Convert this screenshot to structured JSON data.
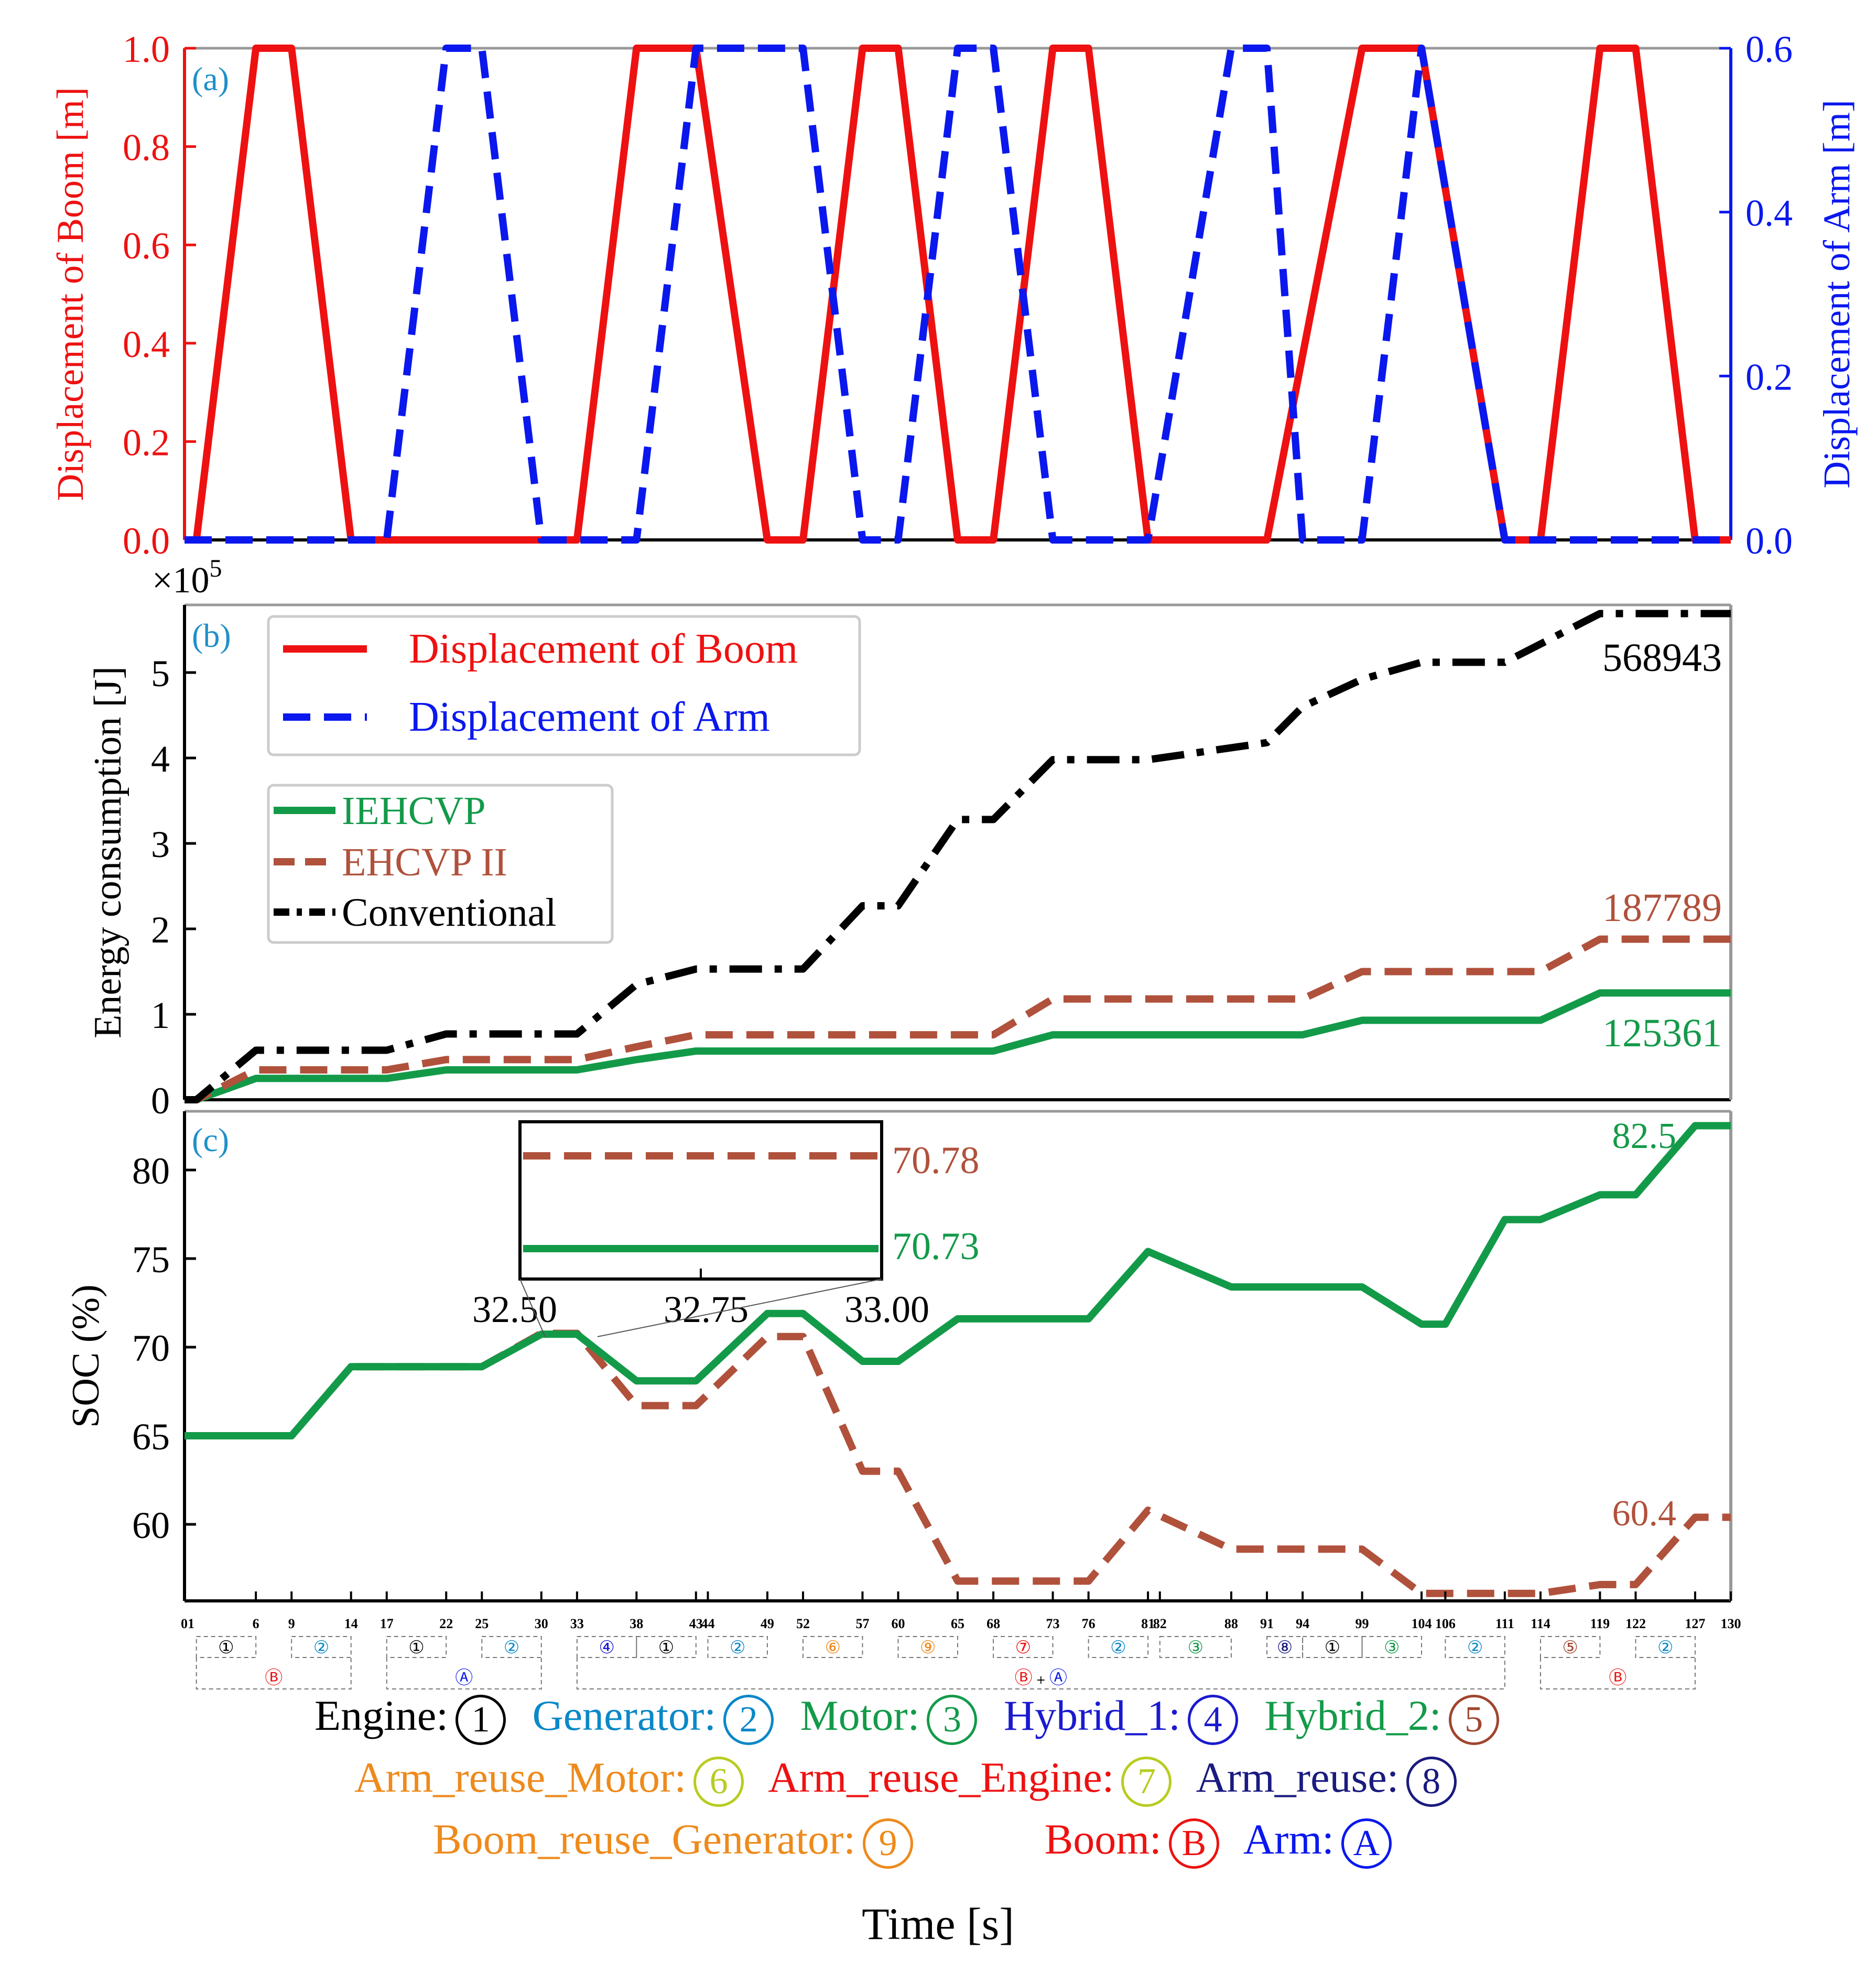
{
  "x_label": "Time [s]",
  "chart_data": [
    {
      "id": "a",
      "panel_label": "(a)",
      "type": "line",
      "ylabel_left": "Displacement of Boom [m]",
      "ylabel_right": "Displacement of Arm [m]",
      "xlim": [
        0,
        130
      ],
      "ylim_left": [
        0,
        1.0
      ],
      "ylim_right": [
        0,
        0.6
      ],
      "yticks_left": [
        "0.0",
        "0.2",
        "0.4",
        "0.6",
        "0.8",
        "1.0"
      ],
      "yticks_right": [
        "0.0",
        "0.2",
        "0.4",
        "0.6"
      ],
      "series": [
        {
          "name": "Displacement of Boom",
          "color": "#ee1111",
          "style": "solid",
          "axis": "left",
          "x": [
            0,
            1,
            6,
            9,
            14,
            33,
            38,
            43,
            49,
            52,
            57,
            60,
            65,
            68,
            73,
            76,
            81,
            91,
            99,
            104,
            111,
            114,
            119,
            122,
            127,
            130
          ],
          "y": [
            0,
            0,
            1,
            1,
            0,
            0,
            1,
            1,
            0,
            0,
            1,
            1,
            0,
            0,
            1,
            1,
            0,
            0,
            1,
            1,
            0,
            0,
            1,
            1,
            0,
            0
          ]
        },
        {
          "name": "Displacement of Arm",
          "color": "#0a18ee",
          "style": "dashed",
          "axis": "right",
          "x": [
            0,
            17,
            22,
            25,
            30,
            38,
            43,
            52,
            57,
            60,
            65,
            68,
            73,
            81,
            88,
            91,
            94,
            99,
            104,
            111,
            130
          ],
          "y": [
            0,
            0,
            0.6,
            0.6,
            0,
            0,
            0.6,
            0.6,
            0,
            0,
            0.6,
            0.6,
            0,
            0,
            0.6,
            0.6,
            0,
            0,
            0.6,
            0,
            0
          ]
        }
      ]
    },
    {
      "id": "b",
      "panel_label": "(b)",
      "type": "line",
      "ylabel": "Energy consumption [J]",
      "scale_label": "×10",
      "scale_exponent": "5",
      "xlim": [
        0,
        130
      ],
      "ylim": [
        0,
        5.8
      ],
      "yticks": [
        "0",
        "1",
        "2",
        "3",
        "4",
        "5"
      ],
      "legend_top": [
        "Displacement of Boom",
        "Displacement of Arm"
      ],
      "series": [
        {
          "name": "IEHCVP",
          "color": "#139a49",
          "style": "solid",
          "x": [
            0,
            1,
            6,
            17,
            22,
            33,
            38,
            43,
            68,
            73,
            94,
            99,
            111,
            114,
            119,
            130
          ],
          "y": [
            0,
            0,
            0.25,
            0.25,
            0.35,
            0.35,
            0.47,
            0.57,
            0.57,
            0.76,
            0.76,
            0.93,
            0.93,
            0.93,
            1.25,
            1.25
          ]
        },
        {
          "name": "EHCVP II",
          "color": "#b0513c",
          "style": "dashed",
          "x": [
            0,
            1,
            6,
            17,
            22,
            33,
            38,
            43,
            68,
            73,
            94,
            99,
            111,
            114,
            119,
            130
          ],
          "y": [
            0,
            0,
            0.35,
            0.35,
            0.47,
            0.47,
            0.62,
            0.76,
            0.76,
            1.18,
            1.18,
            1.5,
            1.5,
            1.5,
            1.88,
            1.88
          ]
        },
        {
          "name": "Conventional",
          "color": "#000000",
          "style": "dashdot",
          "x": [
            0,
            1,
            6,
            17,
            22,
            33,
            38,
            43,
            52,
            57,
            60,
            65,
            68,
            73,
            81,
            91,
            94,
            99,
            104,
            111,
            119,
            130
          ],
          "y": [
            0,
            0,
            0.58,
            0.58,
            0.77,
            0.77,
            1.35,
            1.53,
            1.53,
            2.27,
            2.27,
            3.28,
            3.28,
            3.98,
            3.98,
            4.18,
            4.6,
            4.92,
            5.12,
            5.12,
            5.69,
            5.69
          ]
        }
      ],
      "annotations": [
        "568943",
        "187789",
        "125361"
      ]
    },
    {
      "id": "c",
      "panel_label": "(c)",
      "type": "line",
      "ylabel": "SOC (%)",
      "xlim": [
        0,
        130
      ],
      "ylim": [
        55.9,
        82.9
      ],
      "yticks": [
        "60",
        "65",
        "70",
        "75",
        "80"
      ],
      "xticks": [
        "01",
        "6",
        "9",
        "14",
        "17",
        "22",
        "25",
        "30",
        "33",
        "38",
        "43",
        "44",
        "49",
        "52",
        "57",
        "60",
        "65",
        "68",
        "73",
        "76",
        "81",
        "82",
        "88",
        "91",
        "94",
        "99",
        "104",
        "106",
        "111",
        "114",
        "119",
        "122",
        "127",
        "130"
      ],
      "series": [
        {
          "name": "IEHCVP",
          "color": "#139a49",
          "style": "solid",
          "x": [
            0,
            9,
            14,
            25,
            30,
            33,
            38,
            43,
            49,
            52,
            57,
            60,
            65,
            76,
            81,
            88,
            99,
            104,
            106,
            111,
            114,
            119,
            122,
            127,
            130
          ],
          "y": [
            65,
            65,
            68.9,
            68.9,
            70.73,
            70.73,
            68.1,
            68.1,
            71.9,
            71.9,
            69.2,
            69.2,
            71.6,
            71.6,
            75.4,
            73.4,
            73.4,
            71.3,
            71.3,
            77.2,
            77.2,
            78.6,
            78.6,
            82.5,
            82.5
          ]
        },
        {
          "name": "EHCVP II",
          "color": "#b0513c",
          "style": "dashed",
          "x": [
            0,
            9,
            14,
            25,
            30,
            33,
            38,
            43,
            49,
            52,
            57,
            60,
            65,
            76,
            81,
            88,
            99,
            104,
            106,
            114,
            119,
            122,
            127,
            130
          ],
          "y": [
            65,
            65,
            68.9,
            68.9,
            70.78,
            70.78,
            66.7,
            66.7,
            70.6,
            70.6,
            63.0,
            63.0,
            56.8,
            56.8,
            60.8,
            58.6,
            58.6,
            56.1,
            56.1,
            56.1,
            56.6,
            56.6,
            60.4,
            60.4
          ]
        }
      ],
      "annotations": [
        "82.5",
        "60.4"
      ],
      "inset": {
        "xlim": [
          32.5,
          33.0
        ],
        "xticks": [
          "32.50",
          "32.75",
          "33.00"
        ],
        "labels": [
          "70.78",
          "70.73"
        ]
      }
    }
  ],
  "mode_groups": [
    {
      "items": [
        "①",
        "②"
      ],
      "group": "Ⓑ"
    },
    {
      "items": [
        "①",
        "②"
      ],
      "group": "Ⓐ"
    },
    {
      "items": [
        "④",
        "①",
        "②",
        "⑥",
        "⑨",
        "⑦",
        "②",
        "③",
        "⑧",
        "①",
        "③",
        "②"
      ],
      "group": "Ⓑ + Ⓐ"
    },
    {
      "items": [
        "⑤",
        "②"
      ],
      "group": "Ⓑ"
    }
  ],
  "mode_legend": [
    {
      "label": "Engine:",
      "symbol": "1",
      "color": "#000000"
    },
    {
      "label": "Generator:",
      "symbol": "2",
      "color": "#0a88c8"
    },
    {
      "label": "Motor:",
      "symbol": "3",
      "color": "#139a49"
    },
    {
      "label": "Hybrid_1:",
      "symbol": "4",
      "color": "#1a1ad0"
    },
    {
      "label": "Hybrid_2:",
      "symbol": "5",
      "color": "#a0452e"
    },
    {
      "label": "Arm_reuse_Motor:",
      "symbol": "6",
      "color": "#ee8a1c"
    },
    {
      "label": "Arm_reuse_Engine:",
      "symbol": "7",
      "color": "#ee1111"
    },
    {
      "label": "Arm_reuse:",
      "symbol": "8",
      "color": "#1a1a80"
    },
    {
      "label": "Boom_reuse_Generator:",
      "symbol": "9",
      "color": "#ee8a1c"
    },
    {
      "label": "Boom:",
      "symbol": "B",
      "color": "#ee1111"
    },
    {
      "label": "Arm:",
      "symbol": "A",
      "color": "#0a18ee"
    }
  ]
}
